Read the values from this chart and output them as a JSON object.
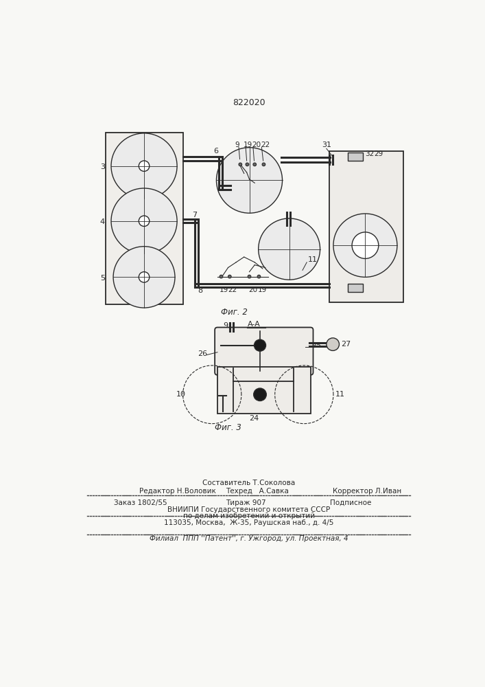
{
  "patent_number": "822020",
  "fig2_label": "Фиг. 2",
  "fig3_label": "Фиг. 3",
  "background_color": "#f8f8f5",
  "line_color": "#2a2a2a",
  "footer_line0": "Составитель Т.Соколова",
  "footer_line1": "Редактор Н.Воловик",
  "footer_line1b": "Техред   А.Савка",
  "footer_line1c": "Корректор Л.Иван",
  "footer_line2": "Заказ 1802/55",
  "footer_line2b": "Тираж 907",
  "footer_line2c": "Подписное",
  "footer_line3": "ВНИИПИ Государственного комитета СССР",
  "footer_line4": "по делам изобретений и открытий",
  "footer_line5": "113035, Москва,  Ж-35, Раушская наб., д. 4/5",
  "footer_line6": "Филиал  ППП ''Патент'', г. Ужгород, ул. Проектная, 4"
}
